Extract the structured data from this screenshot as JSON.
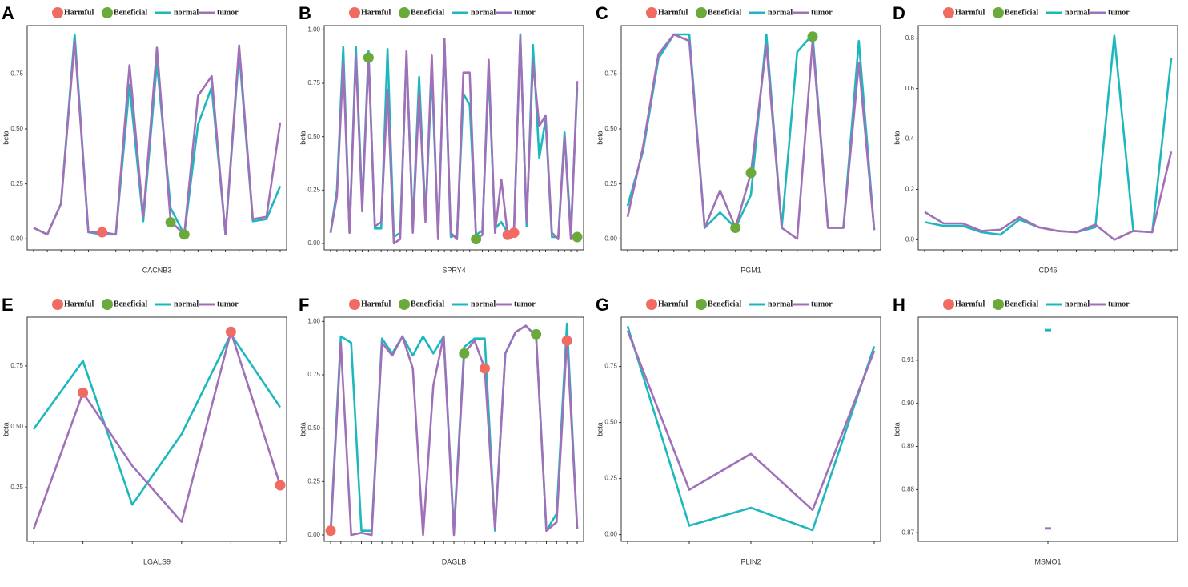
{
  "chart_data": [
    {
      "type": "line",
      "panel": "A",
      "xlabel": "CACNB3",
      "ylabel": "beta",
      "ylim": [
        -0.05,
        0.97
      ],
      "yticks": [
        {
          "value": 0,
          "label": "0.00"
        },
        {
          "value": 0.25,
          "label": "0.25"
        },
        {
          "value": 0.5,
          "label": "0.50"
        },
        {
          "value": 0.75,
          "label": "0.75"
        }
      ],
      "categories": [
        null,
        null,
        null,
        null,
        null,
        null,
        null,
        null,
        null,
        null,
        null,
        null,
        null,
        null,
        null,
        null,
        null,
        null,
        null
      ],
      "series": [
        {
          "name": "Harmful",
          "type": "scatter",
          "color": "#f26b63",
          "values": [
            null,
            null,
            null,
            null,
            null,
            0.03,
            null,
            null,
            null,
            null,
            null,
            null,
            null,
            null,
            null,
            null,
            null,
            null,
            null
          ]
        },
        {
          "name": "Beneficial",
          "type": "scatter",
          "color": "#6aaa3a",
          "values": [
            null,
            null,
            null,
            null,
            null,
            null,
            null,
            null,
            null,
            null,
            0.075,
            0.02,
            null,
            null,
            null,
            null,
            null,
            null,
            null
          ]
        },
        {
          "name": "normal",
          "type": "line",
          "color": "#1db8be",
          "values": [
            0.05,
            0.02,
            0.16,
            0.93,
            0.03,
            0.02,
            0.02,
            0.7,
            0.08,
            0.8,
            0.14,
            0.02,
            0.52,
            0.69,
            0.02,
            0.85,
            0.08,
            0.09,
            0.24
          ]
        },
        {
          "name": "tumor",
          "type": "line",
          "color": "#a070b8",
          "values": [
            0.05,
            0.02,
            0.16,
            0.9,
            0.03,
            0.03,
            0.02,
            0.79,
            0.1,
            0.87,
            0.08,
            0.02,
            0.65,
            0.74,
            0.02,
            0.88,
            0.09,
            0.1,
            0.53
          ]
        }
      ]
    },
    {
      "type": "line",
      "panel": "B",
      "xlabel": "SPRY4",
      "ylabel": "beta",
      "ylim": [
        -0.03,
        1.02
      ],
      "yticks": [
        {
          "value": 0,
          "label": "0.00"
        },
        {
          "value": 0.25,
          "label": "0.25"
        },
        {
          "value": 0.5,
          "label": "0.50"
        },
        {
          "value": 0.75,
          "label": "0.75"
        },
        {
          "value": 1,
          "label": "1.00"
        }
      ],
      "categories": [
        null,
        null,
        null,
        null,
        null,
        null,
        null,
        null,
        null,
        null,
        null,
        null,
        null,
        null,
        null,
        null,
        null,
        null,
        null,
        null,
        null,
        null,
        null,
        null,
        null,
        null,
        null,
        null,
        null,
        null,
        null,
        null,
        null,
        null,
        null,
        null,
        null,
        null,
        null,
        null
      ],
      "series": [
        {
          "name": "Harmful",
          "type": "scatter",
          "color": "#f26b63",
          "values": [
            null,
            null,
            null,
            null,
            null,
            null,
            null,
            null,
            null,
            null,
            null,
            null,
            null,
            null,
            null,
            null,
            null,
            null,
            null,
            null,
            null,
            null,
            null,
            null,
            null,
            null,
            null,
            null,
            0.04,
            0.05,
            null,
            null,
            null,
            null,
            null,
            null,
            null,
            null,
            null,
            null
          ]
        },
        {
          "name": "Beneficial",
          "type": "scatter",
          "color": "#6aaa3a",
          "values": [
            null,
            null,
            null,
            null,
            null,
            null,
            0.87,
            null,
            null,
            null,
            null,
            null,
            null,
            null,
            null,
            null,
            null,
            null,
            null,
            null,
            null,
            null,
            null,
            0.02,
            null,
            null,
            null,
            null,
            null,
            null,
            null,
            null,
            null,
            null,
            null,
            null,
            null,
            null,
            null,
            0.03
          ]
        },
        {
          "name": "normal",
          "type": "line",
          "color": "#1db8be",
          "values": [
            0.05,
            0.25,
            0.92,
            0.05,
            0.92,
            0.18,
            0.9,
            0.07,
            0.07,
            0.91,
            0.03,
            0.05,
            0.88,
            0.08,
            0.78,
            0.12,
            0.8,
            0.04,
            0.94,
            0.03,
            0.04,
            0.7,
            0.65,
            0.04,
            0.06,
            0.8,
            0.07,
            0.1,
            0.05,
            0.06,
            0.98,
            0.08,
            0.93,
            0.4,
            0.58,
            0.03,
            0.03,
            0.52,
            0.05,
            0.73
          ]
        },
        {
          "name": "tumor",
          "type": "line",
          "color": "#a070b8",
          "values": [
            0.05,
            0.22,
            0.85,
            0.05,
            0.88,
            0.15,
            0.87,
            0.08,
            0.1,
            0.72,
            0.0,
            0.02,
            0.9,
            0.05,
            0.7,
            0.1,
            0.88,
            0.02,
            0.96,
            0.05,
            0.02,
            0.8,
            0.8,
            0.02,
            0.04,
            0.86,
            0.05,
            0.3,
            0.04,
            0.05,
            0.97,
            0.1,
            0.85,
            0.55,
            0.6,
            0.05,
            0.02,
            0.5,
            0.02,
            0.76
          ]
        }
      ]
    },
    {
      "type": "line",
      "panel": "C",
      "xlabel": "PGM1",
      "ylabel": "beta",
      "ylim": [
        -0.05,
        0.97
      ],
      "yticks": [
        {
          "value": 0,
          "label": "0.00"
        },
        {
          "value": 0.25,
          "label": "0.25"
        },
        {
          "value": 0.5,
          "label": "0.50"
        },
        {
          "value": 0.75,
          "label": "0.75"
        }
      ],
      "categories": [
        null,
        null,
        null,
        null,
        null,
        null,
        null,
        null,
        null,
        null,
        null,
        null,
        null,
        null,
        null,
        null,
        null
      ],
      "series": [
        {
          "name": "Harmful",
          "type": "scatter",
          "color": "#f26b63",
          "values": [
            null,
            null,
            null,
            null,
            null,
            null,
            null,
            null,
            null,
            null,
            null,
            null,
            null,
            null,
            null,
            null,
            null
          ]
        },
        {
          "name": "Beneficial",
          "type": "scatter",
          "color": "#6aaa3a",
          "values": [
            null,
            null,
            null,
            null,
            null,
            null,
            null,
            0.05,
            0.3,
            null,
            null,
            null,
            0.92,
            null,
            null,
            null,
            null
          ]
        },
        {
          "name": "normal",
          "type": "line",
          "color": "#1db8be",
          "values": [
            0.15,
            0.4,
            0.82,
            0.93,
            0.93,
            0.05,
            0.12,
            0.05,
            0.2,
            0.93,
            0.05,
            0.85,
            0.93,
            0.05,
            0.05,
            0.9,
            0.04
          ]
        },
        {
          "name": "tumor",
          "type": "line",
          "color": "#a070b8",
          "values": [
            0.1,
            0.42,
            0.84,
            0.93,
            0.9,
            0.05,
            0.22,
            0.05,
            0.3,
            0.88,
            0.05,
            0.0,
            0.9,
            0.05,
            0.05,
            0.8,
            0.04
          ]
        }
      ]
    },
    {
      "type": "line",
      "panel": "D",
      "xlabel": "CD46",
      "ylabel": "beta",
      "ylim": [
        -0.04,
        0.85
      ],
      "yticks": [
        {
          "value": 0,
          "label": "0.0"
        },
        0.2,
        0.4,
        0.6,
        0.8
      ],
      "categories": [
        null,
        null,
        null,
        null,
        null,
        null,
        null,
        null,
        null,
        null,
        null,
        null,
        null,
        null
      ],
      "series": [
        {
          "name": "Harmful",
          "type": "scatter",
          "color": "#f26b63",
          "values": [
            null,
            null,
            null,
            null,
            null,
            null,
            null,
            null,
            null,
            null,
            null,
            null,
            null,
            null
          ]
        },
        {
          "name": "Beneficial",
          "type": "scatter",
          "color": "#6aaa3a",
          "values": [
            null,
            null,
            null,
            null,
            null,
            null,
            null,
            null,
            null,
            null,
            null,
            null,
            null,
            null
          ]
        },
        {
          "name": "normal",
          "type": "line",
          "color": "#1db8be",
          "values": [
            0.07,
            0.055,
            0.055,
            0.03,
            0.02,
            0.08,
            0.05,
            0.035,
            0.03,
            0.05,
            0.81,
            0.035,
            0.03,
            0.72
          ]
        },
        {
          "name": "tumor",
          "type": "line",
          "color": "#a070b8",
          "values": [
            0.11,
            0.065,
            0.065,
            0.035,
            0.04,
            0.09,
            0.05,
            0.035,
            0.03,
            0.06,
            0.0,
            0.035,
            0.03,
            0.35
          ]
        }
      ]
    },
    {
      "type": "line",
      "panel": "E",
      "xlabel": "LGALS9",
      "ylabel": "beta",
      "ylim": [
        0.03,
        0.95
      ],
      "yticks": [
        0.25,
        {
          "value": 0.5,
          "label": "0.50"
        },
        0.75
      ],
      "categories": [
        null,
        null,
        null,
        null,
        null,
        null
      ],
      "series": [
        {
          "name": "Harmful",
          "type": "scatter",
          "color": "#f26b63",
          "values": [
            null,
            0.64,
            null,
            null,
            0.89,
            0.26
          ]
        },
        {
          "name": "Beneficial",
          "type": "scatter",
          "color": "#6aaa3a",
          "values": [
            null,
            null,
            null,
            null,
            null,
            null
          ]
        },
        {
          "name": "normal",
          "type": "line",
          "color": "#1db8be",
          "values": [
            0.49,
            0.77,
            0.18,
            0.47,
            0.88,
            0.58
          ]
        },
        {
          "name": "tumor",
          "type": "line",
          "color": "#a070b8",
          "values": [
            0.08,
            0.64,
            0.34,
            0.11,
            0.89,
            0.26
          ]
        }
      ]
    },
    {
      "type": "line",
      "panel": "F",
      "xlabel": "DAGLB",
      "ylabel": "beta",
      "ylim": [
        -0.03,
        1.02
      ],
      "yticks": [
        {
          "value": 0,
          "label": "0.00"
        },
        0.25,
        {
          "value": 0.5,
          "label": "0.50"
        },
        0.75,
        {
          "value": 1,
          "label": "1.00"
        }
      ],
      "categories": [
        null,
        null,
        null,
        null,
        null,
        null,
        null,
        null,
        null,
        null,
        null,
        null,
        null,
        null,
        null,
        null,
        null,
        null,
        null,
        null,
        null,
        null,
        null,
        null,
        null
      ],
      "series": [
        {
          "name": "Harmful",
          "type": "scatter",
          "color": "#f26b63",
          "values": [
            0.02,
            null,
            null,
            null,
            null,
            null,
            null,
            null,
            null,
            null,
            null,
            null,
            null,
            null,
            null,
            0.78,
            null,
            null,
            null,
            null,
            null,
            null,
            null,
            0.91,
            null
          ]
        },
        {
          "name": "Beneficial",
          "type": "scatter",
          "color": "#6aaa3a",
          "values": [
            null,
            null,
            null,
            null,
            null,
            null,
            null,
            null,
            null,
            null,
            null,
            null,
            null,
            0.85,
            null,
            null,
            null,
            null,
            null,
            null,
            0.94,
            null,
            null,
            null,
            null
          ]
        },
        {
          "name": "normal",
          "type": "line",
          "color": "#1db8be",
          "values": [
            0.02,
            0.93,
            0.9,
            0.02,
            0.02,
            0.92,
            0.85,
            0.93,
            0.84,
            0.93,
            0.85,
            0.93,
            0.02,
            0.88,
            0.92,
            0.92,
            0.02,
            0.85,
            0.95,
            0.98,
            0.93,
            0.02,
            0.1,
            0.99,
            0.03
          ]
        },
        {
          "name": "tumor",
          "type": "line",
          "color": "#a070b8",
          "values": [
            0.0,
            0.9,
            0.0,
            0.01,
            0.0,
            0.9,
            0.84,
            0.93,
            0.78,
            0.0,
            0.7,
            0.93,
            0.0,
            0.85,
            0.91,
            0.78,
            0.03,
            0.85,
            0.95,
            0.98,
            0.93,
            0.02,
            0.06,
            0.92,
            0.03
          ]
        }
      ]
    },
    {
      "type": "line",
      "panel": "G",
      "xlabel": "PLIN2",
      "ylabel": "beta",
      "ylim": [
        -0.03,
        0.97
      ],
      "yticks": [
        {
          "value": 0,
          "label": "0.00"
        },
        0.25,
        {
          "value": 0.5,
          "label": "0.50"
        },
        0.75
      ],
      "categories": [
        null,
        null,
        null,
        null,
        null
      ],
      "series": [
        {
          "name": "Harmful",
          "type": "scatter",
          "color": "#f26b63",
          "values": [
            null,
            null,
            null,
            null,
            null
          ]
        },
        {
          "name": "Beneficial",
          "type": "scatter",
          "color": "#6aaa3a",
          "values": [
            null,
            null,
            null,
            null,
            null
          ]
        },
        {
          "name": "normal",
          "type": "line",
          "color": "#1db8be",
          "values": [
            0.93,
            0.04,
            0.12,
            0.02,
            0.84
          ]
        },
        {
          "name": "tumor",
          "type": "line",
          "color": "#a070b8",
          "values": [
            0.91,
            0.2,
            0.36,
            0.11,
            0.82
          ]
        }
      ]
    },
    {
      "type": "line",
      "panel": "H",
      "xlabel": "MSMO1",
      "ylabel": "beta",
      "ylim": [
        0.868,
        0.92
      ],
      "yticks": [
        0.87,
        0.88,
        0.89,
        {
          "value": 0.9,
          "label": "0.90"
        },
        0.91
      ],
      "categories": [
        null
      ],
      "series": [
        {
          "name": "Harmful",
          "type": "scatter",
          "color": "#f26b63",
          "values": [
            null
          ]
        },
        {
          "name": "Beneficial",
          "type": "scatter",
          "color": "#6aaa3a",
          "values": [
            null
          ]
        },
        {
          "name": "normal",
          "type": "line",
          "color": "#1db8be",
          "values": [
            0.917
          ]
        },
        {
          "name": "tumor",
          "type": "line",
          "color": "#a070b8",
          "values": [
            0.871
          ]
        }
      ]
    }
  ]
}
